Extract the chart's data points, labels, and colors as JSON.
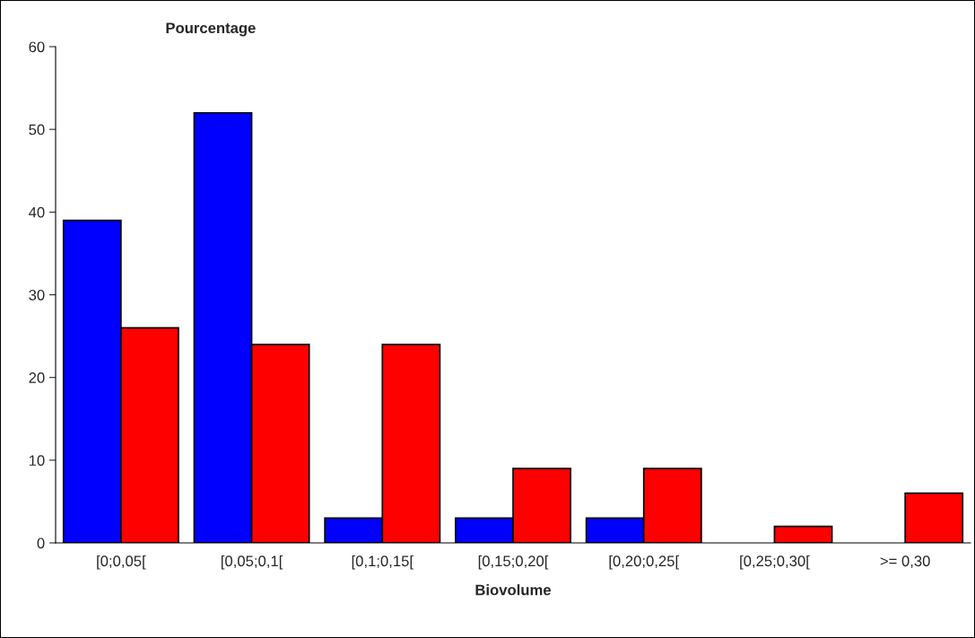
{
  "chart_data": {
    "type": "bar",
    "xlabel": "Biovolume",
    "ylabel": "Pourcentage",
    "categories": [
      "[0;0,05[",
      "[0,05;0,1[",
      "[0,1;0,15[",
      "[0,15;0,20[",
      "[0,20;0,25[",
      "[0,25;0,30[",
      ">= 0,30"
    ],
    "series": [
      {
        "color": "#0000ff",
        "values": [
          39,
          52,
          3,
          3,
          3,
          null,
          null
        ]
      },
      {
        "color": "#ff0000",
        "values": [
          26,
          24,
          24,
          9,
          9,
          2,
          6
        ]
      }
    ],
    "ylim": [
      0,
      60
    ],
    "yticks": [
      0,
      10,
      20,
      30,
      40,
      50,
      60
    ],
    "grid": false,
    "legend": false
  }
}
